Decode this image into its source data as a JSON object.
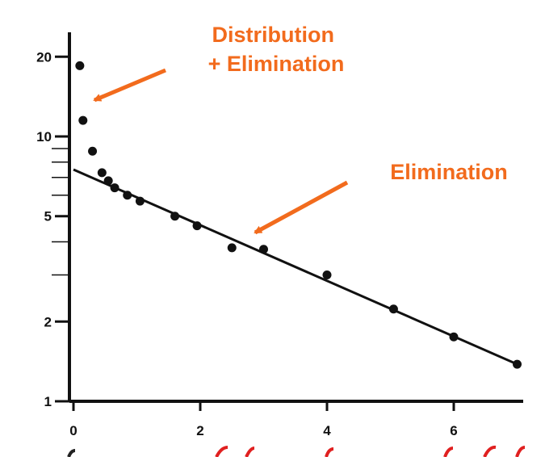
{
  "chart_data": {
    "type": "scatter",
    "title": "",
    "xlabel": "",
    "ylabel": "",
    "y_scale": "log",
    "xlim": [
      0,
      7
    ],
    "ylim": [
      1,
      25
    ],
    "grid": false,
    "legend": "none",
    "x_ticks": [
      {
        "value": 0,
        "label": "0"
      },
      {
        "value": 2,
        "label": "2"
      },
      {
        "value": 4,
        "label": "4"
      },
      {
        "value": 6,
        "label": "6"
      }
    ],
    "y_ticks": [
      {
        "value": 1,
        "label": "1"
      },
      {
        "value": 2,
        "label": "2"
      },
      {
        "value": 5,
        "label": "5"
      },
      {
        "value": 10,
        "label": "10"
      },
      {
        "value": 20,
        "label": "20"
      }
    ],
    "y_minor_ticks": [
      3,
      4,
      6,
      7,
      8,
      9
    ],
    "points": [
      {
        "x": 0.1,
        "y": 18.5
      },
      {
        "x": 0.15,
        "y": 11.5
      },
      {
        "x": 0.3,
        "y": 8.8
      },
      {
        "x": 0.45,
        "y": 7.3
      },
      {
        "x": 0.55,
        "y": 6.8
      },
      {
        "x": 0.65,
        "y": 6.4
      },
      {
        "x": 0.85,
        "y": 6.0
      },
      {
        "x": 1.05,
        "y": 5.7
      },
      {
        "x": 1.6,
        "y": 5.0
      },
      {
        "x": 1.95,
        "y": 4.6
      },
      {
        "x": 2.5,
        "y": 3.8
      },
      {
        "x": 3.0,
        "y": 3.75
      },
      {
        "x": 4.0,
        "y": 3.0
      },
      {
        "x": 5.05,
        "y": 2.23
      },
      {
        "x": 6.0,
        "y": 1.75
      },
      {
        "x": 7.0,
        "y": 1.38
      }
    ],
    "fit_line": {
      "x": [
        0,
        7
      ],
      "y": [
        7.5,
        1.38
      ]
    },
    "annotations": [
      {
        "lines": [
          "Distribution",
          "+ Elimination"
        ],
        "color": "#f26b1d"
      },
      {
        "lines": [
          "Elimination"
        ],
        "color": "#f26b1d"
      }
    ],
    "colors": {
      "axis": "#111111",
      "points": "#111111",
      "fit_line": "#111111",
      "annotation": "#f26b1d",
      "arrow": "#f26b1d",
      "bottom_partial": "#e02020"
    }
  }
}
